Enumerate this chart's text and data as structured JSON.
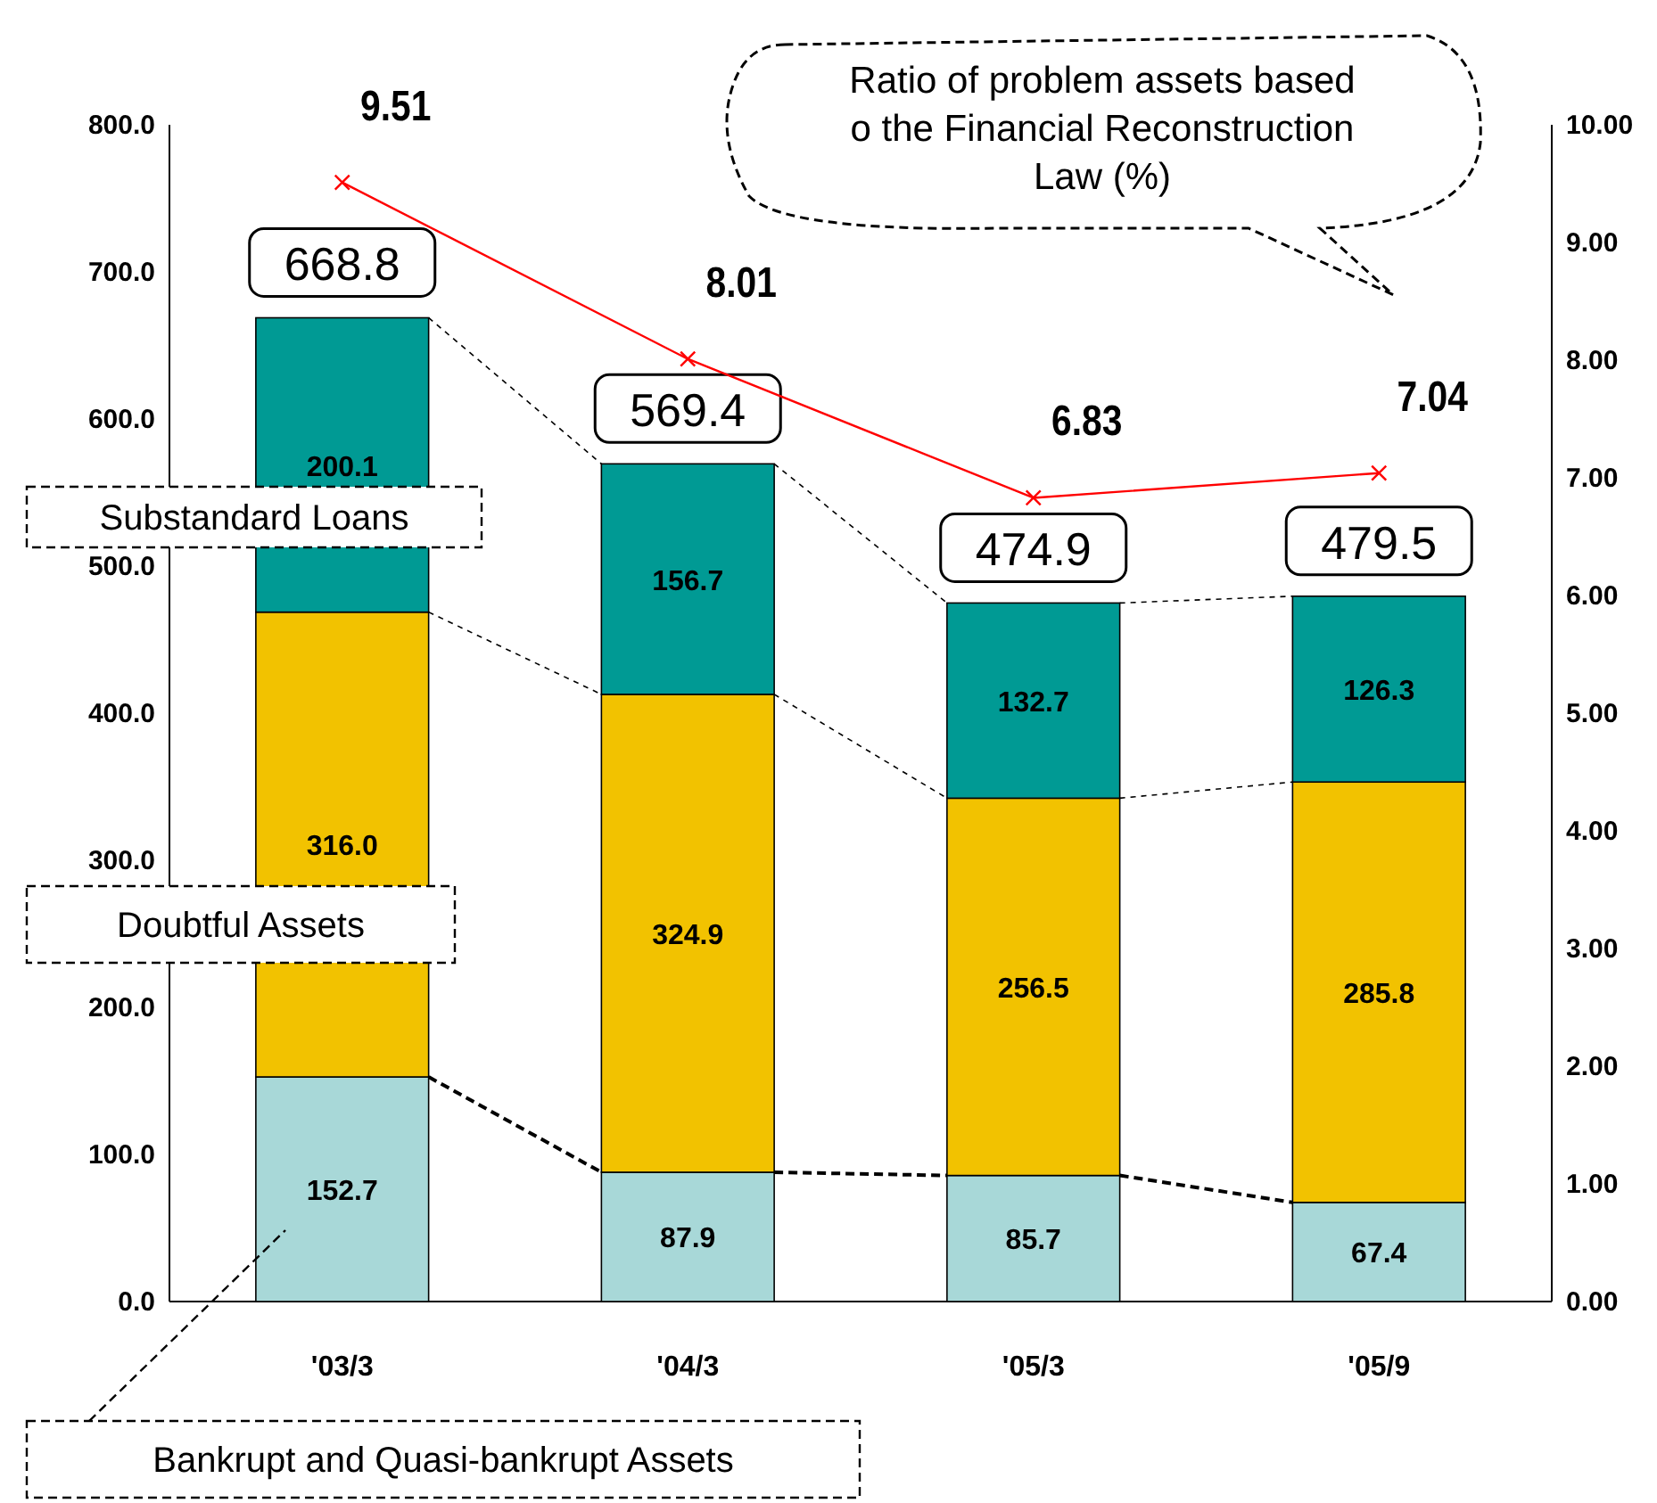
{
  "chart_data": {
    "type": "bar",
    "stacked": true,
    "categories": [
      "'03/3",
      "'04/3",
      "'05/3",
      "'05/9"
    ],
    "series": [
      {
        "name": "Bankrupt and Quasi-bankrupt Assets",
        "color": "#a8d8d8",
        "values": [
          152.7,
          87.9,
          85.7,
          67.4
        ]
      },
      {
        "name": "Doubtful Assets",
        "color": "#f2c200",
        "values": [
          316.0,
          324.9,
          256.5,
          285.8
        ]
      },
      {
        "name": "Substandard Loans",
        "color": "#009a94",
        "values": [
          200.1,
          156.7,
          132.7,
          126.3
        ]
      },
      {
        "type": "line",
        "axis": "y2",
        "color": "#ff0000",
        "marker": "cross",
        "values": [
          9.51,
          8.01,
          6.83,
          7.04
        ],
        "value_labels": [
          "9.51",
          "8.01",
          "6.83",
          "7.04"
        ]
      }
    ],
    "value_labels": [
      [
        "152.7",
        "87.9",
        "85.7",
        "67.4"
      ],
      [
        "316.0",
        "324.9",
        "256.5",
        "285.8"
      ],
      [
        "200.1",
        "156.7",
        "132.7",
        "126.3"
      ]
    ],
    "annotations": [
      "Ratio of problem assets based o the Financial Reconstruction Law (%)"
    ],
    "totals": [
      "668.8",
      "569.4",
      "474.9",
      "479.5"
    ],
    "ylim": [
      0,
      800
    ],
    "yticks": [
      {
        "value": 0,
        "label": "0.0"
      },
      {
        "value": 100,
        "label": "100.0"
      },
      {
        "value": 200,
        "label": "200.0"
      },
      {
        "value": 300,
        "label": "300.0"
      },
      {
        "value": 400,
        "label": "400.0"
      },
      {
        "value": 500,
        "label": "500.0"
      },
      {
        "value": 600,
        "label": "600.0"
      },
      {
        "value": 700,
        "label": "700.0"
      },
      {
        "value": 800,
        "label": "800.0"
      }
    ],
    "y2lim": [
      0,
      10
    ],
    "y2ticks": [
      {
        "value": 0,
        "label": "0.00"
      },
      {
        "value": 1,
        "label": "1.00"
      },
      {
        "value": 2,
        "label": "2.00"
      },
      {
        "value": 3,
        "label": "3.00"
      },
      {
        "value": 4,
        "label": "4.00"
      },
      {
        "value": 5,
        "label": "5.00"
      },
      {
        "value": 6,
        "label": "6.00"
      },
      {
        "value": 7,
        "label": "7.00"
      },
      {
        "value": 8,
        "label": "8.00"
      },
      {
        "value": 9,
        "label": "9.00"
      },
      {
        "value": 10,
        "label": "10.00"
      }
    ],
    "grid": false,
    "legend": false
  }
}
